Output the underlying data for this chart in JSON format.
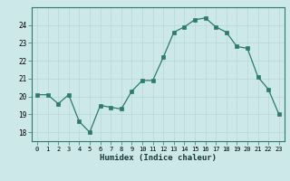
{
  "x": [
    0,
    1,
    2,
    3,
    4,
    5,
    6,
    7,
    8,
    9,
    10,
    11,
    12,
    13,
    14,
    15,
    16,
    17,
    18,
    19,
    20,
    21,
    22,
    23
  ],
  "y": [
    20.1,
    20.1,
    19.6,
    20.1,
    18.6,
    18.0,
    19.5,
    19.4,
    19.3,
    20.3,
    20.9,
    20.9,
    22.2,
    23.6,
    23.9,
    24.3,
    24.4,
    23.9,
    23.6,
    22.8,
    22.7,
    21.1,
    20.4,
    19.0
  ],
  "xlabel": "Humidex (Indice chaleur)",
  "ylim": [
    17.5,
    25.0
  ],
  "xlim": [
    -0.5,
    23.5
  ],
  "yticks": [
    18,
    19,
    20,
    21,
    22,
    23,
    24
  ],
  "xticks": [
    0,
    1,
    2,
    3,
    4,
    5,
    6,
    7,
    8,
    9,
    10,
    11,
    12,
    13,
    14,
    15,
    16,
    17,
    18,
    19,
    20,
    21,
    22,
    23
  ],
  "line_color": "#2d7a6e",
  "marker_color": "#2d7a6e",
  "bg_color": "#cce8e8",
  "grid_color": "#b8d8d8",
  "plot_bg": "#cce8e8"
}
